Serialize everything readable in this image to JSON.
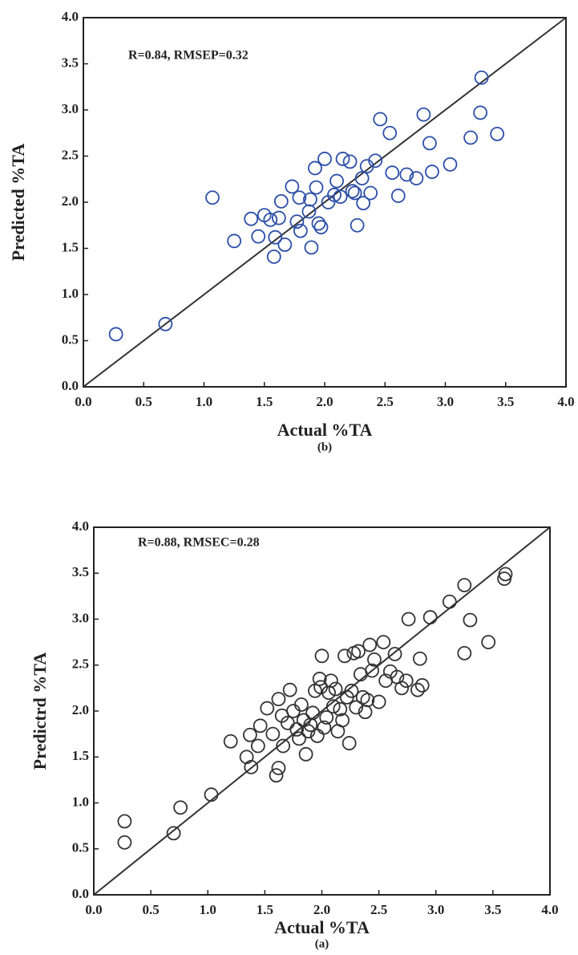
{
  "chart_data": [
    {
      "type": "scatter",
      "annotation": "R=0.84, RMSEP=0.32",
      "x_label": "Actual %TA",
      "y_label": "Predicted %TA",
      "caption": "(b)",
      "color": "#2b4fa8",
      "xlim": [
        0,
        4
      ],
      "ylim": [
        0,
        4
      ],
      "xticks": [
        {
          "value": 0,
          "label": "0.0"
        },
        0.5,
        {
          "value": 1,
          "label": "1.0"
        },
        1.5,
        {
          "value": 2,
          "label": "2.0"
        },
        2.5,
        {
          "value": 3,
          "label": "3.0"
        },
        3.5,
        {
          "value": 4,
          "label": "4.0"
        }
      ],
      "yticks": [
        {
          "value": 0,
          "label": "0.0"
        },
        0.5,
        {
          "value": 1,
          "label": "1.0"
        },
        1.5,
        {
          "value": 2,
          "label": "2.0"
        },
        2.5,
        {
          "value": 3,
          "label": "3.0"
        },
        3.5,
        {
          "value": 4,
          "label": "4.0"
        }
      ],
      "x": [
        0.27,
        0.68,
        1.07,
        1.25,
        1.39,
        1.45,
        1.5,
        1.55,
        1.58,
        1.59,
        1.62,
        1.64,
        1.67,
        1.73,
        1.77,
        1.8,
        1.79,
        1.87,
        1.88,
        1.89,
        1.92,
        1.93,
        1.95,
        1.97,
        2.0,
        2.03,
        2.08,
        2.1,
        2.13,
        2.15,
        2.21,
        2.23,
        2.25,
        2.27,
        2.31,
        2.32,
        2.35,
        2.38,
        2.42,
        2.46,
        2.54,
        2.56,
        2.61,
        2.68,
        2.76,
        2.82,
        2.87,
        2.89,
        3.04,
        3.21,
        3.29,
        3.3,
        3.43
      ],
      "y": [
        0.57,
        0.68,
        2.05,
        1.58,
        1.82,
        1.63,
        1.86,
        1.81,
        1.41,
        1.62,
        1.83,
        2.01,
        1.54,
        2.17,
        1.79,
        1.69,
        2.05,
        1.9,
        2.03,
        1.51,
        2.37,
        2.16,
        1.77,
        1.73,
        2.47,
        2.0,
        2.08,
        2.23,
        2.06,
        2.47,
        2.44,
        2.12,
        2.1,
        1.75,
        2.26,
        1.99,
        2.39,
        2.1,
        2.45,
        2.9,
        2.75,
        2.32,
        2.07,
        2.3,
        2.26,
        2.95,
        2.64,
        2.33,
        2.41,
        2.7,
        2.97,
        3.35,
        2.74
      ]
    },
    {
      "type": "scatter",
      "annotation": "R=0.88, RMSEC=0.28",
      "x_label": "Actual %TA",
      "y_label": "Predictrd %TA",
      "caption": "(a)",
      "color": "#333333",
      "xlim": [
        0,
        4
      ],
      "ylim": [
        0,
        4
      ],
      "xticks": [
        {
          "value": 0,
          "label": "0.0"
        },
        0.5,
        {
          "value": 1,
          "label": "1.0"
        },
        1.5,
        {
          "value": 2,
          "label": "2.0"
        },
        2.5,
        {
          "value": 3,
          "label": "3.0"
        },
        3.5,
        {
          "value": 4,
          "label": "4.0"
        }
      ],
      "yticks": [
        {
          "value": 0,
          "label": "0.0"
        },
        0.5,
        {
          "value": 1,
          "label": "1.0"
        },
        1.5,
        {
          "value": 2,
          "label": "2.0"
        },
        2.5,
        {
          "value": 3,
          "label": "3.0"
        },
        3.5,
        {
          "value": 4,
          "label": "4.0"
        }
      ],
      "x": [
        0.27,
        0.27,
        0.7,
        0.76,
        1.03,
        1.2,
        1.34,
        1.37,
        1.38,
        1.44,
        1.46,
        1.52,
        1.57,
        1.6,
        1.62,
        1.62,
        1.65,
        1.66,
        1.7,
        1.72,
        1.75,
        1.78,
        1.8,
        1.82,
        1.84,
        1.86,
        1.88,
        1.9,
        1.92,
        1.94,
        1.96,
        1.98,
        1.99,
        2.0,
        2.02,
        2.04,
        2.06,
        2.08,
        2.1,
        2.12,
        2.14,
        2.16,
        2.18,
        2.2,
        2.22,
        2.24,
        2.26,
        2.28,
        2.3,
        2.32,
        2.34,
        2.36,
        2.38,
        2.4,
        2.42,
        2.44,
        2.46,
        2.5,
        2.54,
        2.56,
        2.6,
        2.64,
        2.66,
        2.7,
        2.74,
        2.76,
        2.84,
        2.86,
        2.88,
        2.95,
        3.12,
        3.25,
        3.25,
        3.3,
        3.46,
        3.6,
        3.61
      ],
      "y": [
        0.8,
        0.57,
        0.67,
        0.95,
        1.09,
        1.67,
        1.5,
        1.74,
        1.39,
        1.62,
        1.84,
        2.03,
        1.75,
        1.3,
        1.38,
        2.13,
        1.95,
        1.62,
        1.87,
        2.23,
        2.0,
        1.8,
        1.7,
        2.07,
        1.9,
        1.53,
        1.78,
        1.85,
        1.98,
        2.22,
        1.73,
        2.35,
        2.26,
        2.6,
        1.82,
        1.93,
        2.2,
        2.33,
        2.05,
        2.24,
        1.78,
        2.02,
        1.9,
        2.6,
        2.15,
        1.65,
        2.22,
        2.63,
        2.04,
        2.65,
        2.4,
        2.15,
        1.99,
        2.12,
        2.72,
        2.44,
        2.56,
        2.1,
        2.75,
        2.33,
        2.43,
        2.62,
        2.37,
        2.25,
        2.33,
        3.0,
        2.23,
        2.57,
        2.28,
        3.02,
        3.19,
        3.37,
        2.63,
        2.99,
        2.75,
        3.44,
        3.49
      ]
    }
  ]
}
